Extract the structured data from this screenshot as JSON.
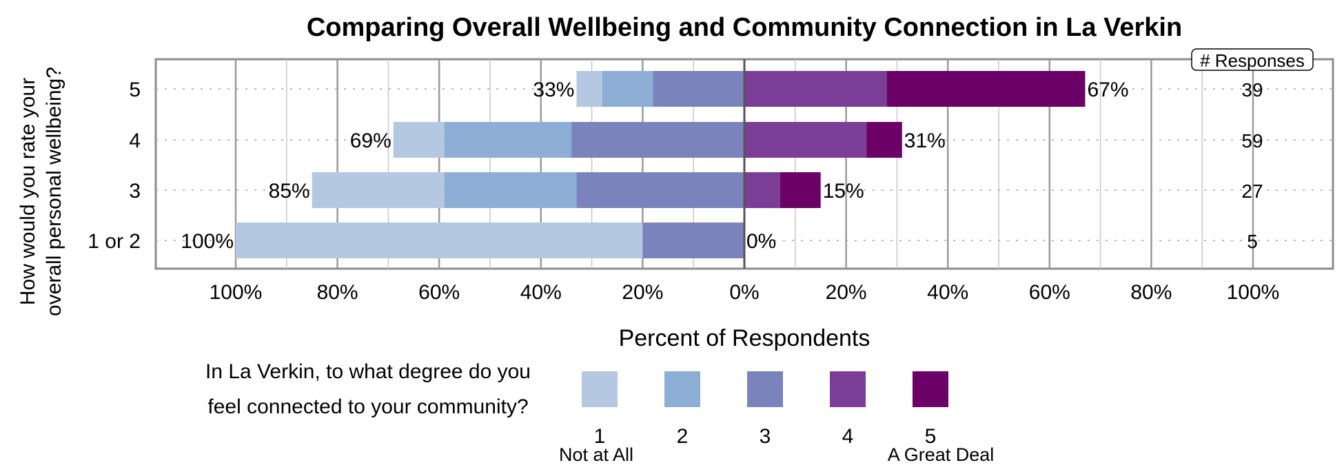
{
  "chart_data": {
    "type": "bar",
    "orientation": "horizontal",
    "stacked": "diverging",
    "title": "Comparing Overall Wellbeing and Community Connection in La Verkin",
    "ylabel": "How would you rate your overall personal wellbeing?",
    "xlabel": "Percent of Respondents",
    "xlim": [
      -100,
      100
    ],
    "xticks": [
      "100%",
      "80%",
      "60%",
      "40%",
      "20%",
      "0%",
      "20%",
      "40%",
      "60%",
      "80%",
      "100%"
    ],
    "categories": [
      "5",
      "4",
      "3",
      "1 or 2"
    ],
    "series": [
      {
        "name": "1",
        "color": "#b4c9e1",
        "values": [
          -5,
          -10,
          -26,
          -80
        ],
        "side": "negative"
      },
      {
        "name": "2",
        "color": "#8eafd5",
        "values": [
          -10,
          -25,
          -26,
          0
        ],
        "side": "negative"
      },
      {
        "name": "3",
        "color": "#7a83bb",
        "values": [
          -18,
          -34,
          -33,
          -20
        ],
        "side": "negative"
      },
      {
        "name": "4",
        "color": "#7a3d98",
        "values": [
          28,
          24,
          7,
          0
        ],
        "side": "positive"
      },
      {
        "name": "5",
        "color": "#6b0066",
        "values": [
          39,
          7,
          8,
          0
        ],
        "side": "positive"
      }
    ],
    "negative_total_labels": [
      "33%",
      "69%",
      "85%",
      "100%"
    ],
    "positive_total_labels": [
      "67%",
      "31%",
      "15%",
      "0%"
    ],
    "responses_header": "# Responses",
    "responses": [
      "39",
      "59",
      "27",
      "5"
    ],
    "legend": {
      "question": [
        "In La Verkin, to what degree do you",
        "feel connected to your community?"
      ],
      "low_anchor": "Not at All",
      "high_anchor": "A Great Deal",
      "placement": "bottom"
    },
    "grid": true
  }
}
